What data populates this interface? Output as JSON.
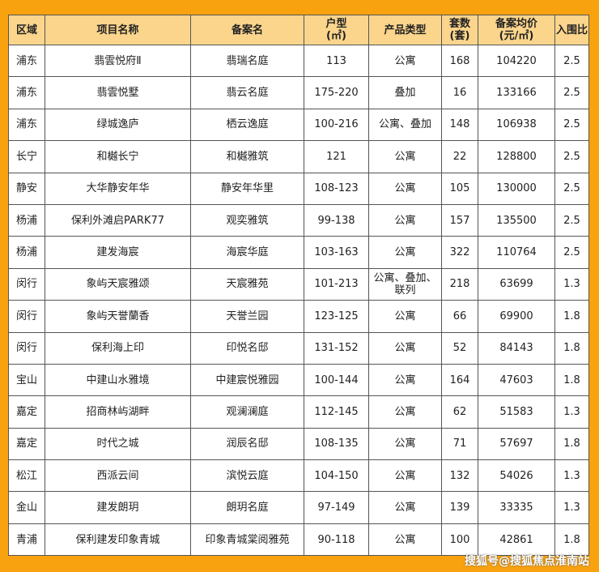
{
  "headers": [
    "区域",
    "项目名称",
    "备案名",
    "户型\n(㎡)",
    "产品类型",
    "套数\n(套)",
    "备案均价\n(元/㎡)",
    "入围比"
  ],
  "rows": [
    [
      "浦东",
      "翡雲悦府Ⅱ",
      "翡瑞名庭",
      "113",
      "公寓",
      "168",
      "104220",
      "2.5"
    ],
    [
      "浦东",
      "翡雲悦墅",
      "翡云名庭",
      "175-220",
      "叠加",
      "16",
      "133166",
      "2.5"
    ],
    [
      "浦东",
      "绿城逸庐",
      "栖云逸庭",
      "100-216",
      "公寓、叠加",
      "148",
      "106938",
      "2.5"
    ],
    [
      "长宁",
      "和樾长宁",
      "和樾雅筑",
      "121",
      "公寓",
      "22",
      "128800",
      "2.5"
    ],
    [
      "静安",
      "大华静安年华",
      "静安年华里",
      "108-123",
      "公寓",
      "105",
      "130000",
      "2.5"
    ],
    [
      "杨浦",
      "保利外滩启PARK77",
      "观奕雅筑",
      "99-138",
      "公寓",
      "157",
      "135500",
      "2.5"
    ],
    [
      "杨浦",
      "建发海宸",
      "海宸华庭",
      "103-163",
      "公寓",
      "322",
      "110764",
      "2.5"
    ],
    [
      "闵行",
      "象屿天宸雅颂",
      "天宸雅苑",
      "101-213",
      "公寓、叠加、联列",
      "218",
      "63699",
      "1.3"
    ],
    [
      "闵行",
      "象屿天誉蘭香",
      "天誉兰园",
      "123-125",
      "公寓",
      "66",
      "69900",
      "1.8"
    ],
    [
      "闵行",
      "保利海上印",
      "印悦名邸",
      "131-152",
      "公寓",
      "52",
      "84143",
      "1.8"
    ],
    [
      "宝山",
      "中建山水雅境",
      "中建宸悦雅园",
      "100-144",
      "公寓",
      "164",
      "47603",
      "1.8"
    ],
    [
      "嘉定",
      "招商林屿湖畔",
      "观澜澜庭",
      "112-145",
      "公寓",
      "62",
      "51583",
      "1.3"
    ],
    [
      "嘉定",
      "时代之城",
      "润辰名邸",
      "108-135",
      "公寓",
      "71",
      "57697",
      "1.8"
    ],
    [
      "松江",
      "西派云间",
      "滨悦云庭",
      "104-150",
      "公寓",
      "132",
      "54026",
      "1.3"
    ],
    [
      "金山",
      "建发朗玥",
      "朗玥名庭",
      "97-149",
      "公寓",
      "139",
      "33335",
      "1.3"
    ],
    [
      "青浦",
      "保利建发印象青城",
      "印象青城棠阅雅苑",
      "90-118",
      "公寓",
      "100",
      "42861",
      "1.8"
    ]
  ],
  "watermark": "搜狐号@搜狐焦点淮南站",
  "colors": {
    "background": "#f9a20f",
    "header": "#fbd58c"
  }
}
